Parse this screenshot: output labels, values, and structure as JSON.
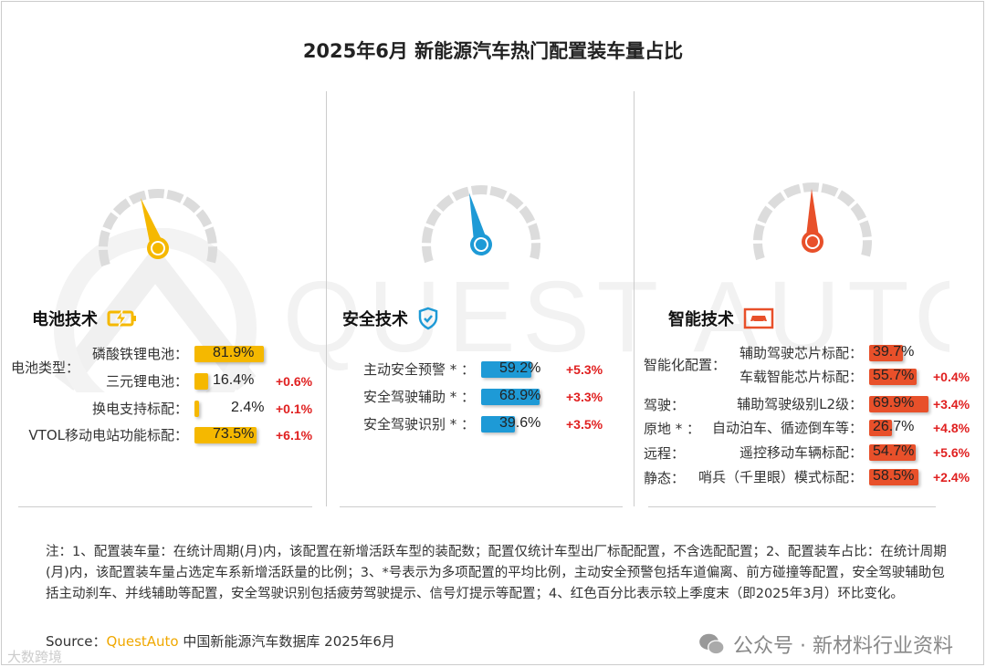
{
  "chart_data": {
    "type": "bar",
    "title": "2025年6月 新能源汽车热门配置装车量占比",
    "panels": [
      {
        "name": "电池技术",
        "icon": "battery-charging-icon",
        "color": "#f5b800",
        "rows": [
          {
            "group": "电池类型：",
            "label": "磷酸铁锂电池：",
            "value": 81.9,
            "display": "81.9%",
            "change": ""
          },
          {
            "group": "",
            "label": "三元锂电池：",
            "value": 16.4,
            "display": "16.4%",
            "change": "+0.6%"
          },
          {
            "group": "",
            "label": "换电支持标配：",
            "value": 2.4,
            "display": "2.4%",
            "change": "+0.1%"
          },
          {
            "group": "",
            "label": "VTOL移动电站功能标配：",
            "value": 73.5,
            "display": "73.5%",
            "change": "+6.1%"
          }
        ]
      },
      {
        "name": "安全技术",
        "icon": "shield-check-icon",
        "color": "#1e9ad6",
        "rows": [
          {
            "group": "",
            "label": "主动安全预警 * ：",
            "value": 59.2,
            "display": "59.2%",
            "change": "+5.3%"
          },
          {
            "group": "",
            "label": "安全驾驶辅助 * ：",
            "value": 68.9,
            "display": "68.9%",
            "change": "+3.3%"
          },
          {
            "group": "",
            "label": "安全驾驶识别 * ：",
            "value": 39.6,
            "display": "39.6%",
            "change": "+3.5%"
          }
        ]
      },
      {
        "name": "智能技术",
        "icon": "car-screen-icon",
        "color": "#e8502a",
        "rows": [
          {
            "group": "智能化配置：",
            "label": "辅助驾驶芯片标配：",
            "value": 39.7,
            "display": "39.7%",
            "change": ""
          },
          {
            "group": "",
            "label": "车载智能芯片标配：",
            "value": 55.7,
            "display": "55.7%",
            "change": "+0.4%"
          },
          {
            "group": "驾驶：",
            "label": "辅助驾驶级别L2级：",
            "value": 69.9,
            "display": "69.9%",
            "change": "+3.4%"
          },
          {
            "group": "原地 * ：",
            "label": "自动泊车、循迹倒车等：",
            "value": 26.7,
            "display": "26.7%",
            "change": "+4.8%"
          },
          {
            "group": "远程：",
            "label": "遥控移动车辆标配：",
            "value": 54.7,
            "display": "54.7%",
            "change": "+5.6%"
          },
          {
            "group": "静态：",
            "label": "哨兵（千里眼）模式标配：",
            "value": 58.5,
            "display": "58.5%",
            "change": "+2.4%"
          }
        ]
      }
    ],
    "change_color": "#e02020"
  },
  "note": "注：1、配置装车量：在统计周期(月)内，该配置在新增活跃车型的装配数；配置仅统计车型出厂标配配置，不含选配配置；2、配置装车占比：在统计周期(月)内，该配置装车量占选定车系新增活跃量的比例；3、*号表示为多项配置的平均比例，主动安全预警包括车道偏离、前方碰撞等配置，安全驾驶辅助包括主动刹车、并线辅助等配置，安全驾驶识别包括疲劳驾驶提示、信号灯提示等配置；4、红色百分比表示较上季度末（即2025年3月）环比变化。",
  "source": {
    "prefix": "Source：",
    "brand": "QuestAuto",
    "text": " 中国新能源汽车数据库 2025年6月"
  },
  "watermarks": {
    "logo": "QUEST AUTO",
    "wechat": "公众号 · 新材料行业资料",
    "corner": "大数跨境"
  }
}
